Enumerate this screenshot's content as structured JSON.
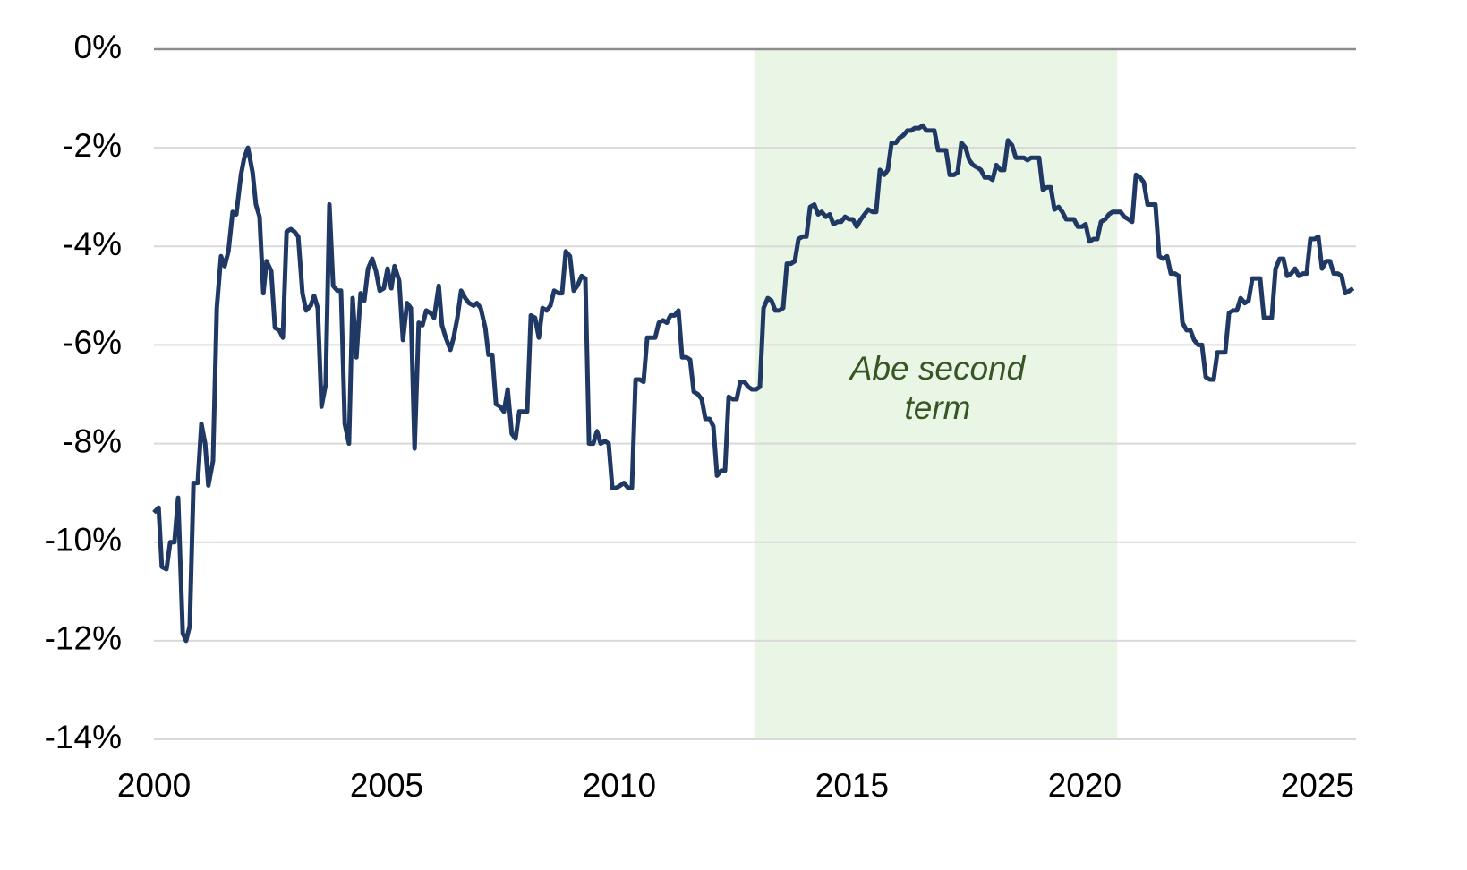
{
  "chart_data": {
    "type": "line",
    "color": "#1f3864",
    "xlim": [
      2000,
      2025.83
    ],
    "xticks": [
      2000,
      2005,
      2010,
      2015,
      2020,
      2025
    ],
    "ylim": [
      -14,
      0
    ],
    "yticks": [
      {
        "value": 0,
        "label": "0%"
      },
      {
        "value": -2,
        "label": "-2%"
      },
      {
        "value": -4,
        "label": "-4%"
      },
      {
        "value": -6,
        "label": "-6%"
      },
      {
        "value": -8,
        "label": "-8%"
      },
      {
        "value": -10,
        "label": "-10%"
      },
      {
        "value": -12,
        "label": "-12%"
      },
      {
        "value": -14,
        "label": "-14%"
      }
    ],
    "grid": true,
    "shaded": {
      "x0": 2012.9,
      "x1": 2020.7,
      "color": "#e9f5e5",
      "label": [
        "Abe second",
        "term"
      ]
    },
    "x": [
      2000.0,
      2000.1,
      2000.17,
      2000.27,
      2000.35,
      2000.44,
      2000.52,
      2000.62,
      2000.69,
      2000.77,
      2000.85,
      2000.94,
      2001.02,
      2001.1,
      2001.17,
      2001.27,
      2001.35,
      2001.44,
      2001.52,
      2001.6,
      2001.69,
      2001.77,
      2001.87,
      2001.94,
      2002.02,
      2002.12,
      2002.19,
      2002.27,
      2002.35,
      2002.42,
      2002.52,
      2002.6,
      2002.69,
      2002.77,
      2002.85,
      2002.94,
      2003.02,
      2003.1,
      2003.19,
      2003.27,
      2003.37,
      2003.44,
      2003.52,
      2003.6,
      2003.69,
      2003.77,
      2003.85,
      2003.94,
      2004.02,
      2004.1,
      2004.19,
      2004.27,
      2004.35,
      2004.44,
      2004.52,
      2004.6,
      2004.69,
      2004.77,
      2004.85,
      2004.94,
      2005.02,
      2005.1,
      2005.17,
      2005.27,
      2005.35,
      2005.44,
      2005.52,
      2005.6,
      2005.69,
      2005.77,
      2005.85,
      2005.94,
      2006.02,
      2006.12,
      2006.19,
      2006.27,
      2006.37,
      2006.44,
      2006.52,
      2006.6,
      2006.69,
      2006.77,
      2006.87,
      2006.94,
      2007.02,
      2007.12,
      2007.19,
      2007.27,
      2007.35,
      2007.44,
      2007.52,
      2007.6,
      2007.69,
      2007.77,
      2007.85,
      2007.94,
      2008.02,
      2008.1,
      2008.19,
      2008.27,
      2008.35,
      2008.44,
      2008.52,
      2008.6,
      2008.69,
      2008.77,
      2008.85,
      2008.94,
      2009.02,
      2009.1,
      2009.19,
      2009.27,
      2009.35,
      2009.44,
      2009.52,
      2009.6,
      2009.69,
      2009.77,
      2009.85,
      2009.94,
      2010.02,
      2010.1,
      2010.19,
      2010.27,
      2010.35,
      2010.44,
      2010.52,
      2010.6,
      2010.69,
      2010.77,
      2010.85,
      2010.94,
      2011.02,
      2011.1,
      2011.19,
      2011.27,
      2011.35,
      2011.44,
      2011.52,
      2011.6,
      2011.69,
      2011.77,
      2011.85,
      2011.94,
      2012.02,
      2012.1,
      2012.19,
      2012.27,
      2012.35,
      2012.44,
      2012.52,
      2012.6,
      2012.69,
      2012.77,
      2012.85,
      2012.94,
      2013.02,
      2013.1,
      2013.19,
      2013.27,
      2013.35,
      2013.44,
      2013.52,
      2013.6,
      2013.69,
      2013.77,
      2013.85,
      2013.94,
      2014.02,
      2014.1,
      2014.19,
      2014.27,
      2014.35,
      2014.44,
      2014.52,
      2014.6,
      2014.69,
      2014.77,
      2014.85,
      2014.94,
      2015.02,
      2015.1,
      2015.19,
      2015.27,
      2015.35,
      2015.44,
      2015.52,
      2015.6,
      2015.69,
      2015.77,
      2015.85,
      2015.94,
      2016.02,
      2016.1,
      2016.19,
      2016.27,
      2016.35,
      2016.44,
      2016.52,
      2016.6,
      2016.69,
      2016.77,
      2016.85,
      2016.94,
      2017.02,
      2017.1,
      2017.19,
      2017.27,
      2017.35,
      2017.44,
      2017.52,
      2017.6,
      2017.69,
      2017.77,
      2017.85,
      2017.94,
      2018.02,
      2018.1,
      2018.19,
      2018.27,
      2018.35,
      2018.44,
      2018.52,
      2018.6,
      2018.69,
      2018.77,
      2018.85,
      2018.94,
      2019.02,
      2019.1,
      2019.19,
      2019.27,
      2019.35,
      2019.44,
      2019.52,
      2019.6,
      2019.69,
      2019.77,
      2019.85,
      2019.94,
      2020.02,
      2020.1,
      2020.19,
      2020.27,
      2020.35,
      2020.44,
      2020.52,
      2020.6,
      2020.69,
      2020.77,
      2020.85,
      2020.94,
      2021.02,
      2021.1,
      2021.19,
      2021.27,
      2021.35,
      2021.44,
      2021.52,
      2021.6,
      2021.69,
      2021.77,
      2021.85,
      2021.94,
      2022.02,
      2022.1,
      2022.19,
      2022.27,
      2022.35,
      2022.44,
      2022.52,
      2022.6,
      2022.69,
      2022.77,
      2022.85,
      2022.94,
      2023.02,
      2023.1,
      2023.19,
      2023.27,
      2023.35,
      2023.44,
      2023.52,
      2023.6,
      2023.69,
      2023.77,
      2023.85,
      2023.94,
      2024.02,
      2024.1,
      2024.19,
      2024.27,
      2024.35,
      2024.44,
      2024.52,
      2024.6,
      2024.69,
      2024.77,
      2024.85,
      2024.94,
      2025.02,
      2025.1,
      2025.19,
      2025.27,
      2025.35,
      2025.44,
      2025.52,
      2025.6,
      2025.69,
      2025.77
    ],
    "values": [
      -9.4,
      -9.3,
      -10.5,
      -10.55,
      -10.0,
      -10.0,
      -9.1,
      -11.85,
      -12.0,
      -11.7,
      -8.8,
      -8.8,
      -7.6,
      -8.0,
      -8.85,
      -8.35,
      -5.25,
      -4.2,
      -4.4,
      -4.1,
      -3.3,
      -3.35,
      -2.55,
      -2.2,
      -2.0,
      -2.5,
      -3.15,
      -3.4,
      -4.95,
      -4.3,
      -4.5,
      -5.65,
      -5.7,
      -5.85,
      -3.7,
      -3.65,
      -3.7,
      -3.8,
      -4.95,
      -5.3,
      -5.2,
      -5.0,
      -5.25,
      -7.25,
      -6.8,
      -3.15,
      -4.8,
      -4.9,
      -4.9,
      -7.6,
      -8.0,
      -5.05,
      -6.25,
      -4.95,
      -5.1,
      -4.45,
      -4.25,
      -4.5,
      -4.9,
      -4.85,
      -4.45,
      -4.85,
      -4.4,
      -4.7,
      -5.9,
      -5.15,
      -5.25,
      -8.1,
      -5.55,
      -5.6,
      -5.3,
      -5.35,
      -5.45,
      -4.8,
      -5.6,
      -5.85,
      -6.1,
      -5.85,
      -5.45,
      -4.9,
      -5.05,
      -5.15,
      -5.2,
      -5.15,
      -5.25,
      -5.65,
      -6.2,
      -6.2,
      -7.2,
      -7.25,
      -7.35,
      -6.9,
      -7.8,
      -7.9,
      -7.35,
      -7.35,
      -7.35,
      -5.4,
      -5.45,
      -5.85,
      -5.25,
      -5.3,
      -5.2,
      -4.9,
      -4.95,
      -4.95,
      -4.1,
      -4.2,
      -4.9,
      -4.8,
      -4.6,
      -4.65,
      -8.0,
      -8.0,
      -7.75,
      -8.0,
      -7.95,
      -8.0,
      -8.9,
      -8.9,
      -8.85,
      -8.8,
      -8.9,
      -8.9,
      -6.7,
      -6.7,
      -6.75,
      -5.85,
      -5.85,
      -5.85,
      -5.55,
      -5.5,
      -5.55,
      -5.4,
      -5.4,
      -5.3,
      -6.25,
      -6.25,
      -6.3,
      -6.95,
      -7.0,
      -7.1,
      -7.5,
      -7.5,
      -7.65,
      -8.65,
      -8.55,
      -8.55,
      -7.05,
      -7.1,
      -7.1,
      -6.75,
      -6.75,
      -6.85,
      -6.9,
      -6.9,
      -6.85,
      -5.25,
      -5.05,
      -5.1,
      -5.3,
      -5.3,
      -5.25,
      -4.35,
      -4.35,
      -4.3,
      -3.85,
      -3.8,
      -3.8,
      -3.2,
      -3.15,
      -3.35,
      -3.3,
      -3.4,
      -3.35,
      -3.55,
      -3.5,
      -3.5,
      -3.4,
      -3.45,
      -3.45,
      -3.6,
      -3.45,
      -3.35,
      -3.25,
      -3.3,
      -3.3,
      -2.45,
      -2.55,
      -2.45,
      -1.9,
      -1.9,
      -1.8,
      -1.75,
      -1.65,
      -1.65,
      -1.6,
      -1.6,
      -1.55,
      -1.65,
      -1.65,
      -1.65,
      -2.05,
      -2.05,
      -2.05,
      -2.55,
      -2.55,
      -2.5,
      -1.9,
      -2.0,
      -2.25,
      -2.35,
      -2.4,
      -2.45,
      -2.6,
      -2.6,
      -2.65,
      -2.35,
      -2.45,
      -2.45,
      -1.85,
      -1.95,
      -2.2,
      -2.2,
      -2.2,
      -2.25,
      -2.2,
      -2.2,
      -2.2,
      -2.85,
      -2.8,
      -2.8,
      -3.25,
      -3.2,
      -3.3,
      -3.45,
      -3.45,
      -3.45,
      -3.6,
      -3.6,
      -3.55,
      -3.9,
      -3.85,
      -3.85,
      -3.5,
      -3.45,
      -3.35,
      -3.3,
      -3.3,
      -3.3,
      -3.4,
      -3.45,
      -3.5,
      -2.55,
      -2.6,
      -2.7,
      -3.15,
      -3.15,
      -3.15,
      -4.2,
      -4.25,
      -4.2,
      -4.55,
      -4.55,
      -4.6,
      -5.55,
      -5.7,
      -5.7,
      -5.9,
      -6.0,
      -6.0,
      -6.65,
      -6.7,
      -6.7,
      -6.15,
      -6.15,
      -6.15,
      -5.35,
      -5.3,
      -5.3,
      -5.05,
      -5.15,
      -5.1,
      -4.65,
      -4.65,
      -4.65,
      -5.45,
      -5.45,
      -5.45,
      -4.45,
      -4.25,
      -4.25,
      -4.6,
      -4.55,
      -4.45,
      -4.6,
      -4.55,
      -4.55,
      -3.85,
      -3.85,
      -3.8,
      -4.45,
      -4.3,
      -4.3,
      -4.55,
      -4.55,
      -4.6,
      -4.95,
      -4.9,
      -4.85
    ]
  }
}
